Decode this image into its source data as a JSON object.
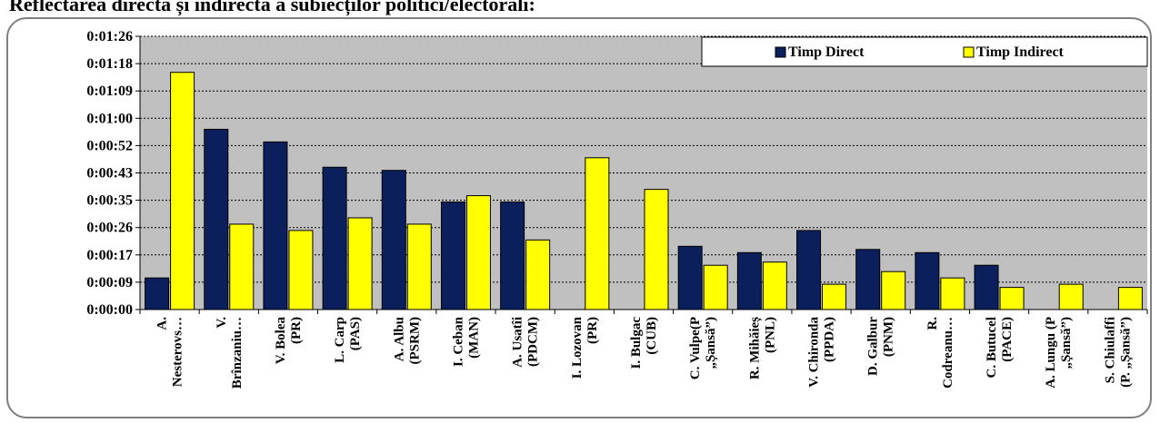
{
  "title": "Reflectarea directă și indirectă a subiecților politici/electorali:",
  "chart_data": {
    "type": "bar",
    "title": "Reflectarea directă și indirectă a subiecților politici/electorali:",
    "xlabel": "",
    "ylabel": "",
    "y_ticks": [
      "0:00:00",
      "0:00:09",
      "0:00:17",
      "0:00:26",
      "0:00:35",
      "0:00:43",
      "0:00:52",
      "0:01:00",
      "0:01:09",
      "0:01:18",
      "0:01:26"
    ],
    "ylim_seconds": [
      0,
      86.4
    ],
    "grid": true,
    "legend_position": "top-right",
    "categories": [
      [
        "A.",
        "Nesterovs…"
      ],
      [
        "V.",
        "Brînzaniu…"
      ],
      [
        "V. Bolea",
        "(PR)"
      ],
      [
        "L. Carp",
        "(PAS)"
      ],
      [
        "A. Albu",
        "(PSRM)"
      ],
      [
        "I. Ceban",
        "(MAN)"
      ],
      [
        "A. Usatîi",
        "(PDCM)"
      ],
      [
        "I. Lozovan",
        "(PR)"
      ],
      [
        "I. Bulgac",
        "(CUB)"
      ],
      [
        "C. Vulpe(P",
        "„Șansă”)"
      ],
      [
        "R. Mihăieș",
        "(PNL)"
      ],
      [
        "V. Chironda",
        "(PPDA)"
      ],
      [
        "D. Galbur",
        "(PNM)"
      ],
      [
        "R.",
        "Codreanu…"
      ],
      [
        "C. Butucel",
        "(PACE)"
      ],
      [
        "A. Lungu (P",
        "„Șansă”)"
      ],
      [
        "S. Chiulaffi",
        "(P. „Șansă”)"
      ]
    ],
    "series": [
      {
        "name": "Timp Direct",
        "color": "#0a1f5c",
        "values_seconds": [
          10,
          57,
          53,
          45,
          44,
          34,
          34,
          0,
          0,
          20,
          18,
          25,
          19,
          18,
          14,
          0,
          0
        ]
      },
      {
        "name": "Timp Indirect",
        "color": "#ffff00",
        "values_seconds": [
          75,
          27,
          25,
          29,
          27,
          36,
          22,
          48,
          38,
          14,
          15,
          8,
          12,
          10,
          7,
          8,
          7
        ]
      }
    ]
  }
}
